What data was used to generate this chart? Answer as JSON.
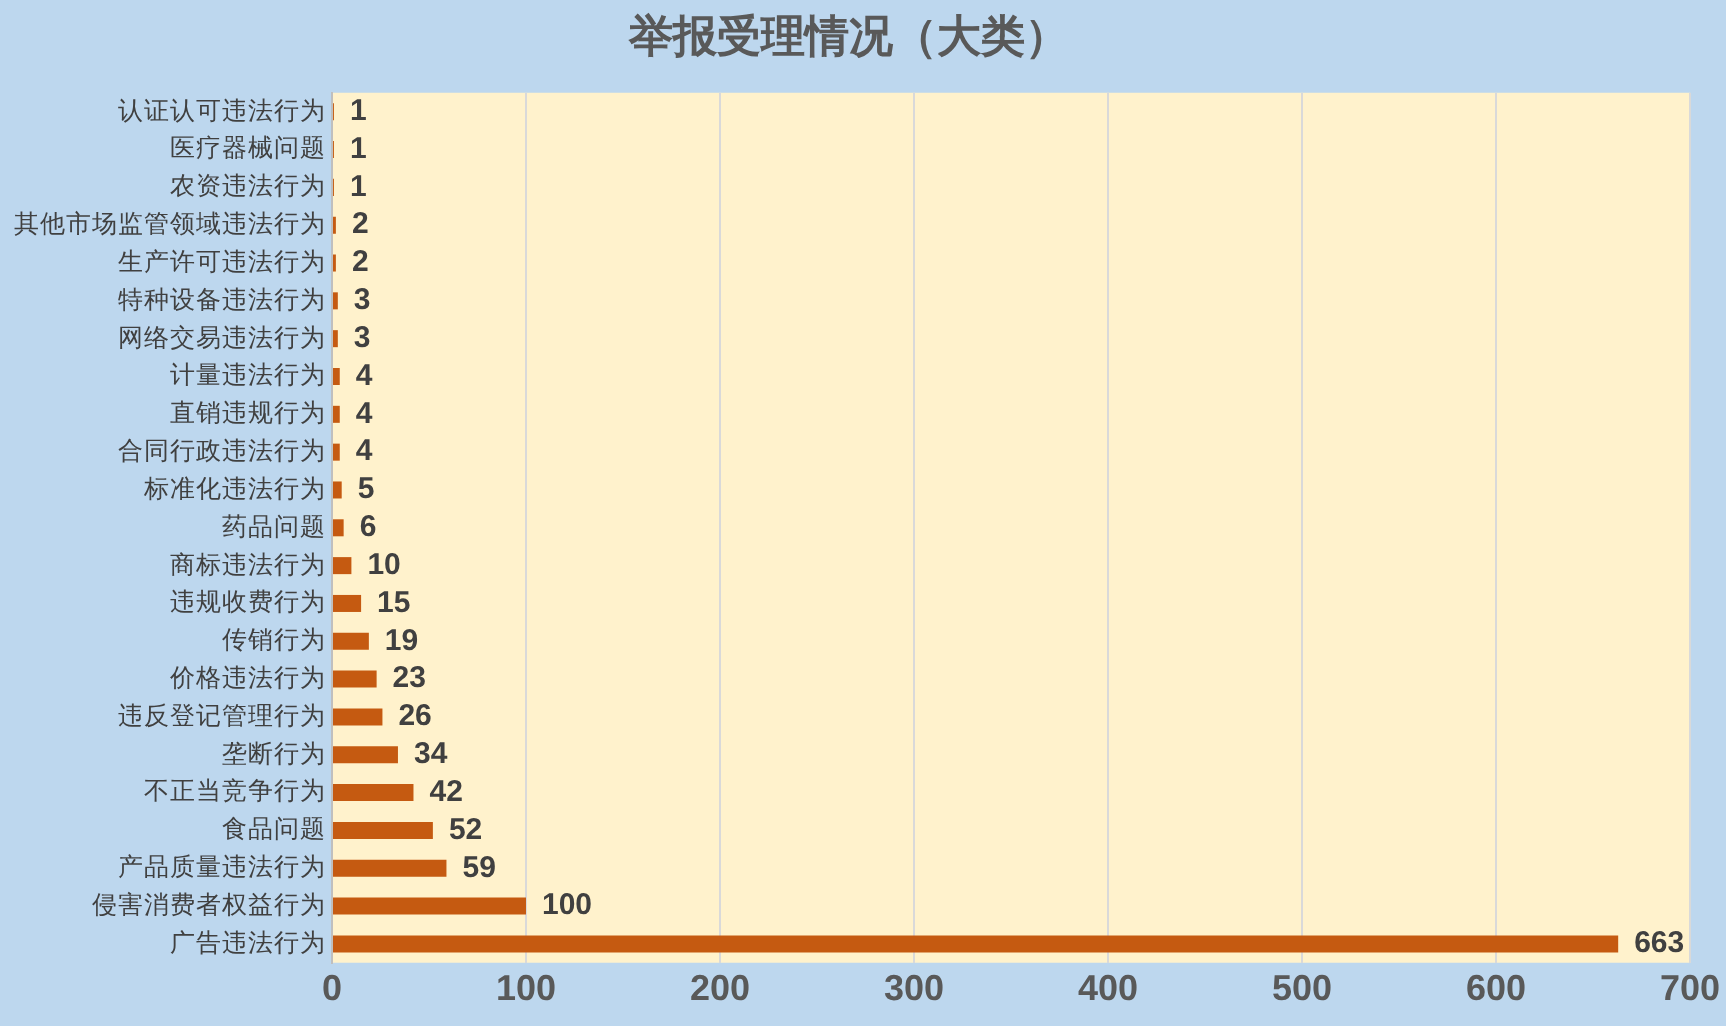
{
  "chart_data": {
    "type": "bar",
    "orientation": "horizontal",
    "title": "举报受理情况（大类）",
    "categories": [
      "认证认可违法行为",
      "医疗器械问题",
      "农资违法行为",
      "其他市场监管领域违法行为",
      "生产许可违法行为",
      "特种设备违法行为",
      "网络交易违法行为",
      "计量违法行为",
      "直销违规行为",
      "合同行政违法行为",
      "标准化违法行为",
      "药品问题",
      "商标违法行为",
      "违规收费行为",
      "传销行为",
      "价格违法行为",
      "违反登记管理行为",
      "垄断行为",
      "不正当竞争行为",
      "食品问题",
      "产品质量违法行为",
      "侵害消费者权益行为",
      "广告违法行为"
    ],
    "values": [
      1,
      1,
      1,
      2,
      2,
      3,
      3,
      4,
      4,
      4,
      5,
      6,
      10,
      15,
      19,
      23,
      26,
      34,
      42,
      52,
      59,
      100,
      663
    ],
    "color": "#c55a11",
    "xlim": [
      0,
      700
    ],
    "xticks": [
      0,
      100,
      200,
      300,
      400,
      500,
      600,
      700
    ],
    "grid": "x",
    "legend": false,
    "data_labels": true
  }
}
